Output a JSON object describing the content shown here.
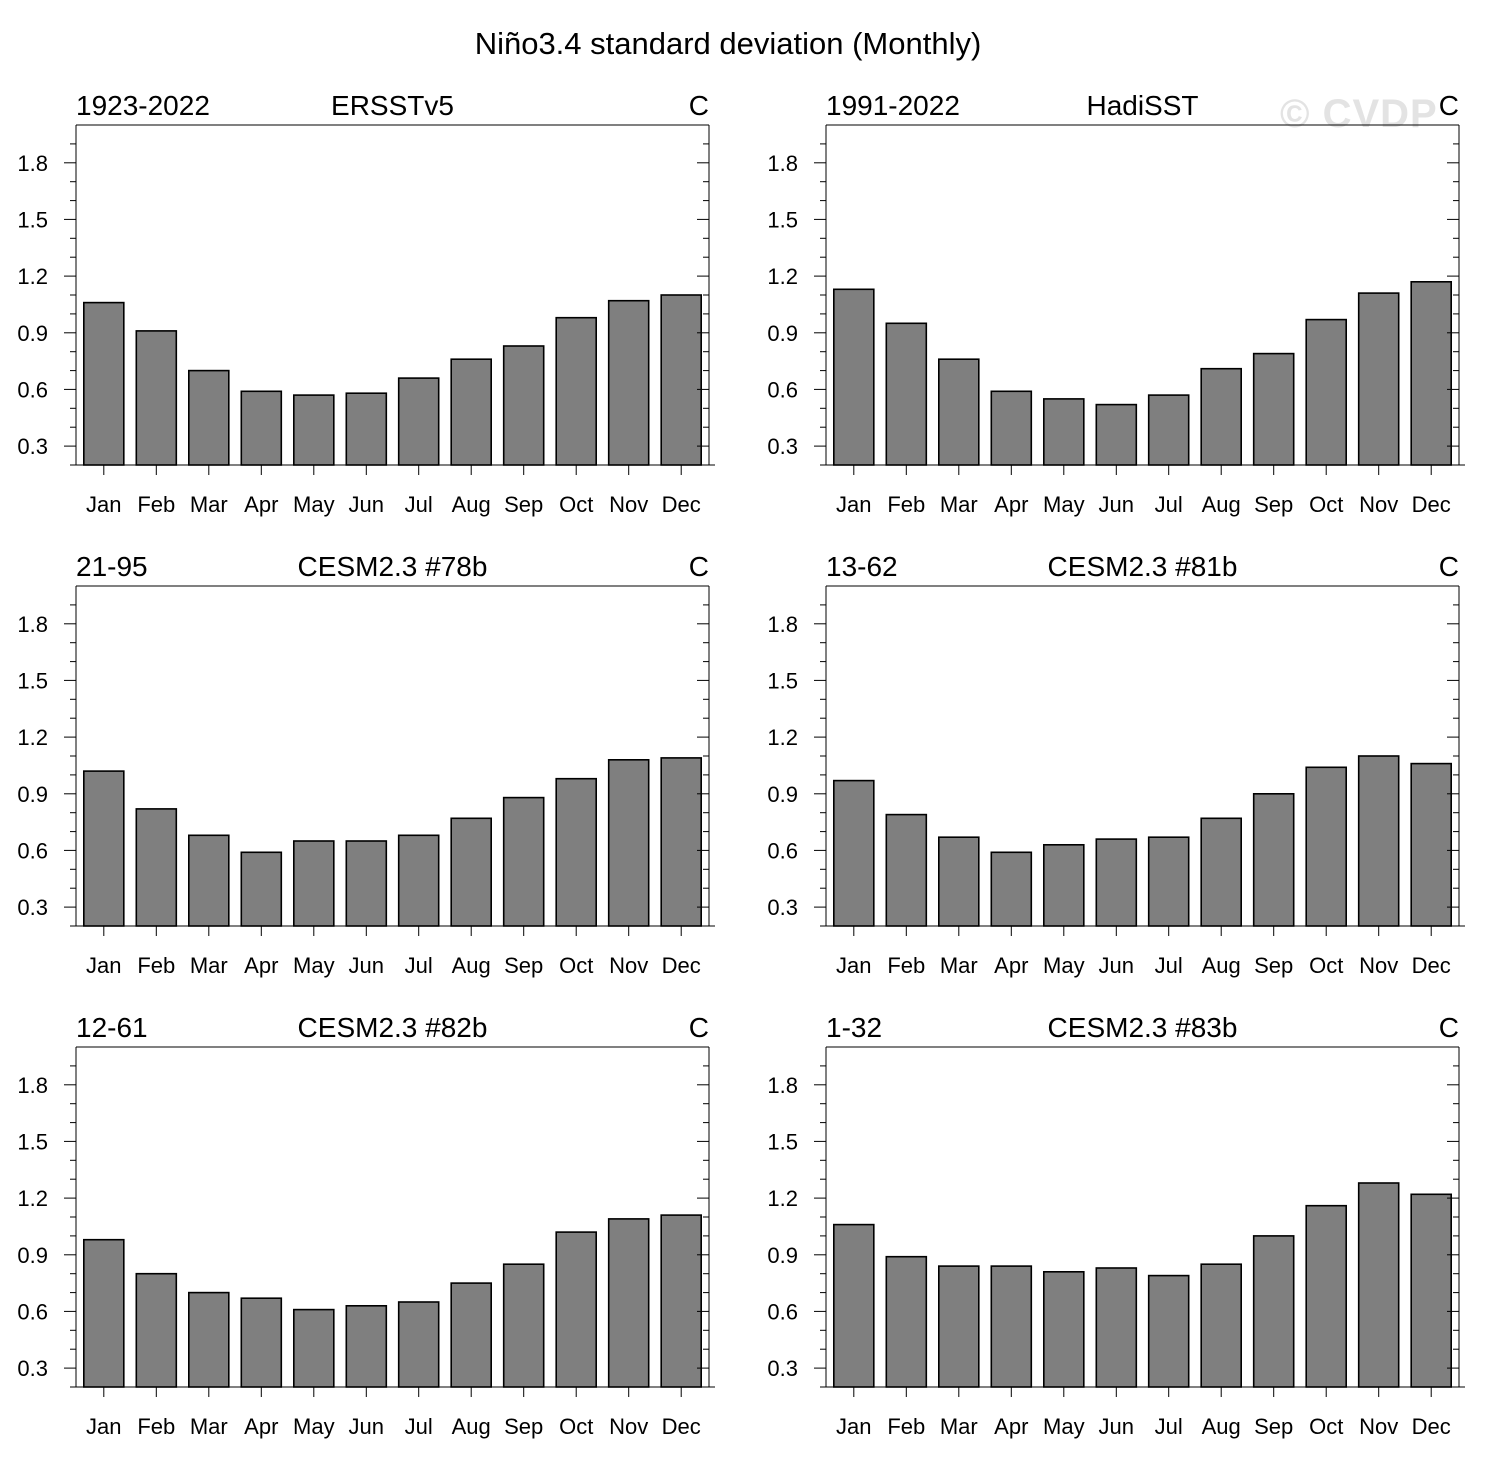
{
  "title": "Niño3.4 standard deviation (Monthly)",
  "watermark": "© CVDP",
  "colors": {
    "bar_fill": "#7f7f7f",
    "bar_stroke": "#000000",
    "axis": "#000000",
    "background": "#ffffff"
  },
  "chart_data": [
    {
      "type": "bar",
      "period": "1923-2022",
      "dataset": "ERSSTv5",
      "units": "C",
      "categories": [
        "Jan",
        "Feb",
        "Mar",
        "Apr",
        "May",
        "Jun",
        "Jul",
        "Aug",
        "Sep",
        "Oct",
        "Nov",
        "Dec"
      ],
      "values": [
        1.06,
        0.91,
        0.7,
        0.59,
        0.57,
        0.58,
        0.66,
        0.76,
        0.83,
        0.98,
        1.07,
        1.1
      ],
      "ylim": [
        0.2,
        2.0
      ],
      "yticks": [
        "0.3",
        "0.6",
        "0.9",
        "1.2",
        "1.5",
        "1.8"
      ]
    },
    {
      "type": "bar",
      "period": "1991-2022",
      "dataset": "HadiSST",
      "units": "C",
      "categories": [
        "Jan",
        "Feb",
        "Mar",
        "Apr",
        "May",
        "Jun",
        "Jul",
        "Aug",
        "Sep",
        "Oct",
        "Nov",
        "Dec"
      ],
      "values": [
        1.13,
        0.95,
        0.76,
        0.59,
        0.55,
        0.52,
        0.57,
        0.71,
        0.79,
        0.97,
        1.11,
        1.17
      ],
      "ylim": [
        0.2,
        2.0
      ],
      "yticks": [
        "0.3",
        "0.6",
        "0.9",
        "1.2",
        "1.5",
        "1.8"
      ]
    },
    {
      "type": "bar",
      "period": "21-95",
      "dataset": "CESM2.3 #78b",
      "units": "C",
      "categories": [
        "Jan",
        "Feb",
        "Mar",
        "Apr",
        "May",
        "Jun",
        "Jul",
        "Aug",
        "Sep",
        "Oct",
        "Nov",
        "Dec"
      ],
      "values": [
        1.02,
        0.82,
        0.68,
        0.59,
        0.65,
        0.65,
        0.68,
        0.77,
        0.88,
        0.98,
        1.08,
        1.09
      ],
      "ylim": [
        0.2,
        2.0
      ],
      "yticks": [
        "0.3",
        "0.6",
        "0.9",
        "1.2",
        "1.5",
        "1.8"
      ]
    },
    {
      "type": "bar",
      "period": "13-62",
      "dataset": "CESM2.3 #81b",
      "units": "C",
      "categories": [
        "Jan",
        "Feb",
        "Mar",
        "Apr",
        "May",
        "Jun",
        "Jul",
        "Aug",
        "Sep",
        "Oct",
        "Nov",
        "Dec"
      ],
      "values": [
        0.97,
        0.79,
        0.67,
        0.59,
        0.63,
        0.66,
        0.67,
        0.77,
        0.9,
        1.04,
        1.1,
        1.06
      ],
      "ylim": [
        0.2,
        2.0
      ],
      "yticks": [
        "0.3",
        "0.6",
        "0.9",
        "1.2",
        "1.5",
        "1.8"
      ]
    },
    {
      "type": "bar",
      "period": "12-61",
      "dataset": "CESM2.3 #82b",
      "units": "C",
      "categories": [
        "Jan",
        "Feb",
        "Mar",
        "Apr",
        "May",
        "Jun",
        "Jul",
        "Aug",
        "Sep",
        "Oct",
        "Nov",
        "Dec"
      ],
      "values": [
        0.98,
        0.8,
        0.7,
        0.67,
        0.61,
        0.63,
        0.65,
        0.75,
        0.85,
        1.02,
        1.09,
        1.11
      ],
      "ylim": [
        0.2,
        2.0
      ],
      "yticks": [
        "0.3",
        "0.6",
        "0.9",
        "1.2",
        "1.5",
        "1.8"
      ]
    },
    {
      "type": "bar",
      "period": "1-32",
      "dataset": "CESM2.3 #83b",
      "units": "C",
      "categories": [
        "Jan",
        "Feb",
        "Mar",
        "Apr",
        "May",
        "Jun",
        "Jul",
        "Aug",
        "Sep",
        "Oct",
        "Nov",
        "Dec"
      ],
      "values": [
        1.06,
        0.89,
        0.84,
        0.84,
        0.81,
        0.83,
        0.79,
        0.85,
        1.0,
        1.16,
        1.28,
        1.22
      ],
      "ylim": [
        0.2,
        2.0
      ],
      "yticks": [
        "0.3",
        "0.6",
        "0.9",
        "1.2",
        "1.5",
        "1.8"
      ]
    }
  ]
}
